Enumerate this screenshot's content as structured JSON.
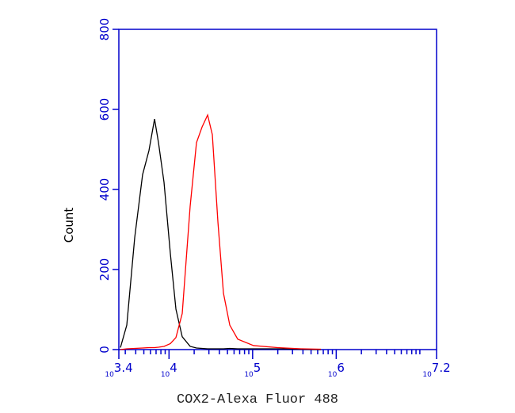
{
  "chart_data": {
    "type": "line",
    "xlabel": "COX2-Alexa Fluor 488",
    "ylabel": "Count",
    "log_x": true,
    "xlim": [
      2511.886,
      15848931.92
    ],
    "ylim": [
      0,
      800
    ],
    "xtick_base": "10",
    "xticks": [
      {
        "value": 2511.886,
        "label": "3.4"
      },
      {
        "value": 10000,
        "label": "4"
      },
      {
        "value": 100000,
        "label": "5"
      },
      {
        "value": 1000000,
        "label": "6"
      },
      {
        "value": 15848931.92,
        "label": "7.2"
      }
    ],
    "xminorticks": [
      3000,
      4000,
      5000,
      6000,
      7000,
      8000,
      9000,
      20000,
      30000,
      40000,
      50000,
      60000,
      70000,
      80000,
      90000,
      200000,
      300000,
      400000,
      500000,
      600000,
      700000,
      800000,
      900000,
      2000000,
      3000000,
      4000000,
      5000000,
      6000000,
      7000000,
      8000000,
      9000000,
      10000000
    ],
    "yticks": [
      0,
      200,
      400,
      600,
      800
    ],
    "axis_color": "#0000cc",
    "x": [
      2624,
      3126,
      3890,
      4831,
      5754,
      6714,
      7483,
      8714,
      10375,
      12097,
      14393,
      17900,
      21315,
      24850,
      28960,
      32980,
      38440,
      44780,
      53330,
      66350,
      102570,
      197700,
      380500,
      656000
    ],
    "series": [
      {
        "color": "#000000",
        "values": [
          5,
          61,
          280,
          437,
          497,
          576,
          517,
          418,
          240,
          101,
          32,
          8,
          4,
          3,
          2,
          2,
          2,
          2,
          3,
          2,
          2,
          2,
          1,
          0
        ]
      },
      {
        "color": "#ff0000",
        "values": [
          0,
          2,
          3,
          4,
          5,
          5,
          6,
          8,
          15,
          30,
          90,
          358,
          517,
          556,
          586,
          537,
          319,
          141,
          61,
          26,
          10,
          5,
          2,
          1
        ]
      }
    ]
  }
}
